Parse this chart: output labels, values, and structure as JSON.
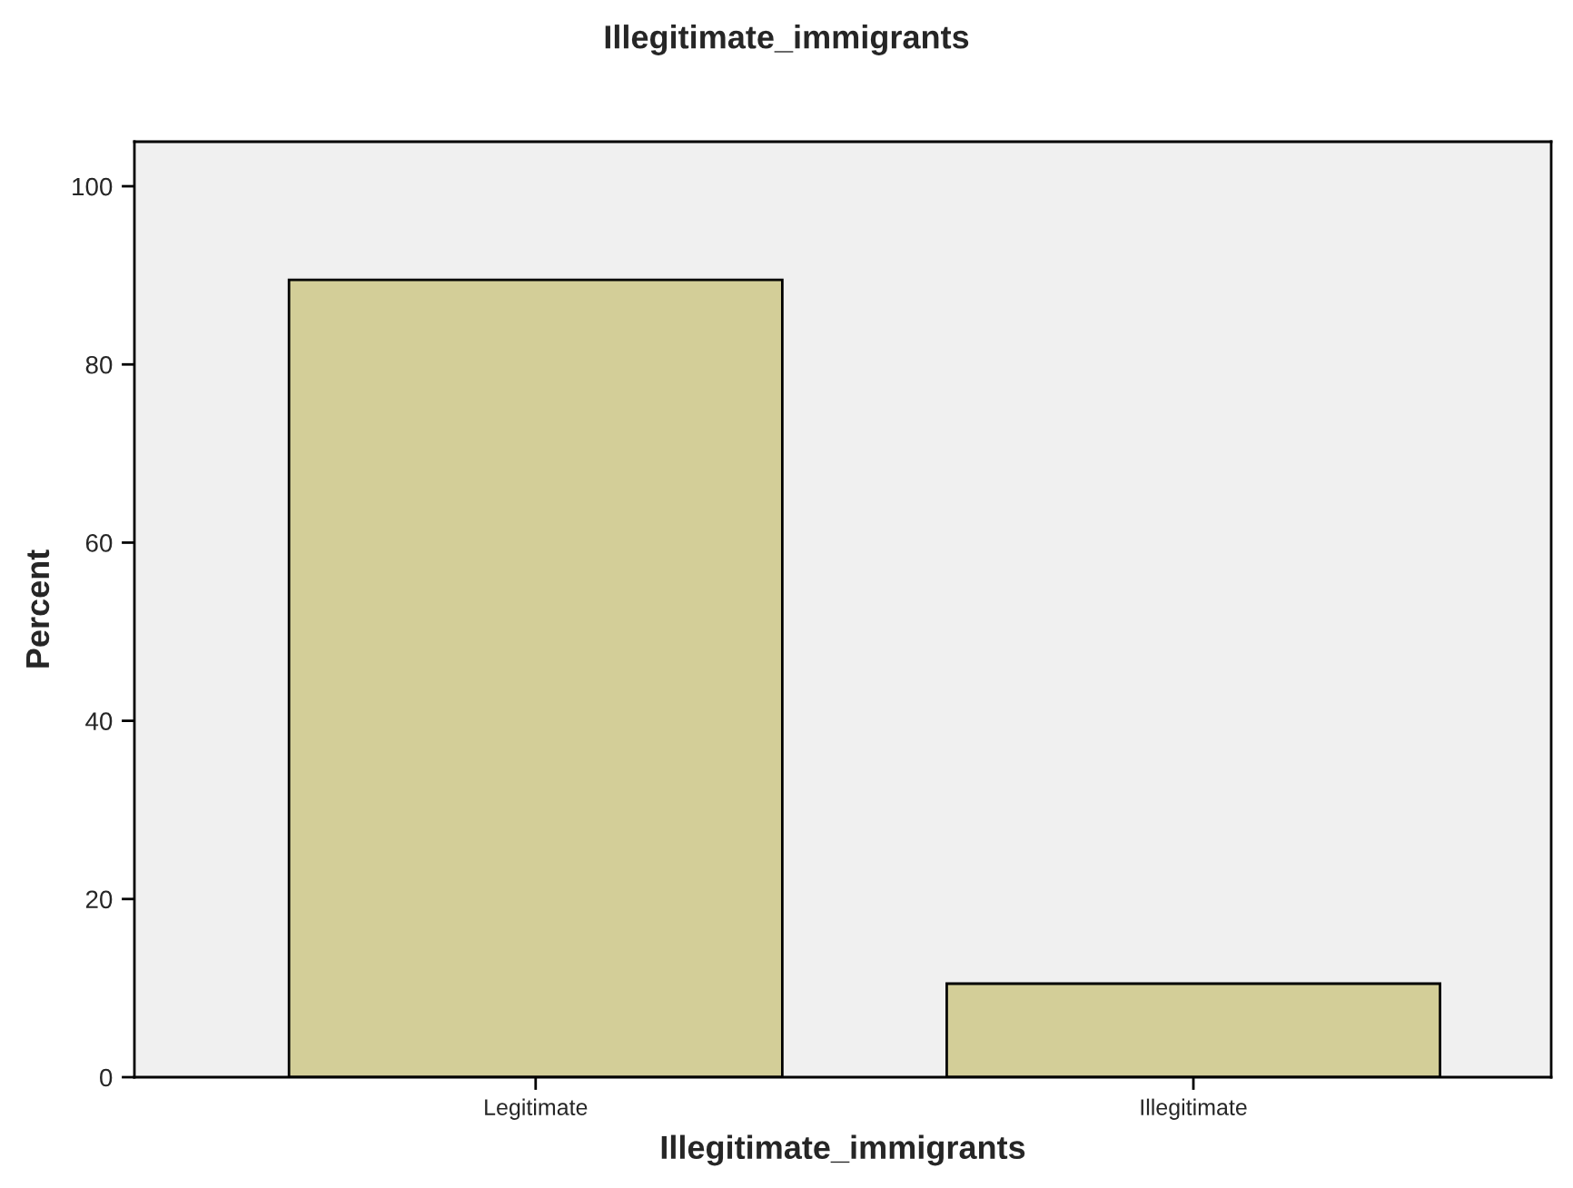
{
  "chart_data": {
    "type": "bar",
    "title": "Illegitimate_immigrants",
    "xlabel": "Illegitimate_immigrants",
    "ylabel": "Percent",
    "categories": [
      "Legitimate",
      "Illegitimate"
    ],
    "values": [
      89.5,
      10.5
    ],
    "color": "#d3ce98",
    "ylim": [
      0,
      105
    ],
    "yticks": [
      0,
      20,
      40,
      60,
      80,
      100
    ],
    "grid": false
  }
}
